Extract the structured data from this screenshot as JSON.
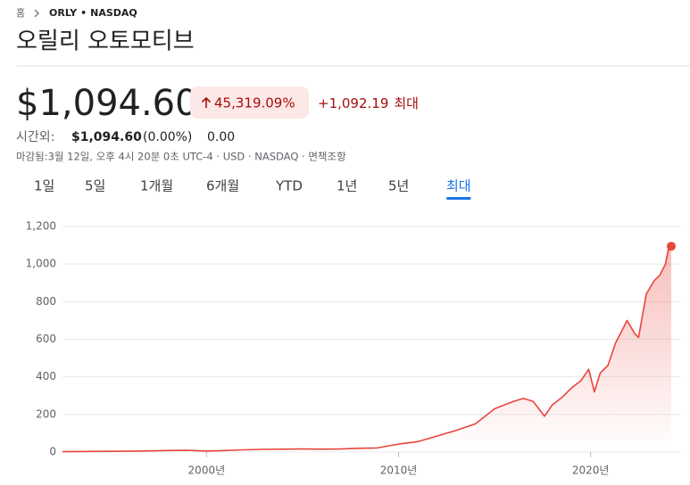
{
  "breadcrumb": {
    "home": "홈",
    "ticker": "ORLY",
    "separator": "•",
    "exchange": "NASDAQ"
  },
  "title": "오릴리 오토모티브",
  "price": "$1,094.60",
  "change": {
    "percent": "45,319.09%",
    "amount": "+1,092.19",
    "period": "최대"
  },
  "after_hours": {
    "label": "시간외:",
    "price": "$1,094.60",
    "percent": "(0.00%)",
    "amount": "0.00"
  },
  "info": "마감됨:3월 12일, 오후 4시 20분 0초 UTC-4 · USD · NASDAQ · 면책조항",
  "tabs": [
    "1일",
    "5일",
    "1개월",
    "6개월",
    "YTD",
    "1년",
    "5년",
    "최대"
  ],
  "selected_tab": 7,
  "chart_data": {
    "type": "line",
    "x": [
      1992.5,
      1993.5,
      1995,
      1996.5,
      1998,
      1999,
      2000,
      2001,
      2002,
      2003,
      2004,
      2005,
      2006,
      2007,
      2008,
      2008.9,
      2010,
      2011,
      2012,
      2012.5,
      2013,
      2014,
      2015,
      2015.5,
      2016,
      2016.5,
      2017,
      2017.3,
      2017.6,
      2018,
      2018.5,
      2019,
      2019.5,
      2019.9,
      2020.2,
      2020.5,
      2020.9,
      2021.3,
      2021.6,
      2021.9,
      2022.3,
      2022.5,
      2022.9,
      2023.3,
      2023.6,
      2023.9,
      2024.05,
      2024.2
    ],
    "series": [
      {
        "color": "#e8453c",
        "values": [
          2,
          3,
          4,
          5,
          8,
          9,
          5,
          8,
          12,
          14,
          15,
          16,
          15,
          16,
          20,
          22,
          42,
          55,
          85,
          100,
          115,
          150,
          230,
          250,
          270,
          285,
          270,
          230,
          190,
          250,
          290,
          340,
          380,
          440,
          320,
          420,
          460,
          580,
          640,
          700,
          630,
          610,
          840,
          910,
          940,
          1000,
          1080,
          1094.6
        ]
      }
    ],
    "xlim": [
      1992.5,
      2024.2
    ],
    "ylim": [
      0,
      1200
    ],
    "xticks": [
      {
        "value": 2000,
        "label": "2000년"
      },
      {
        "value": 2010,
        "label": "2010년"
      },
      {
        "value": 2020,
        "label": "2020년"
      }
    ],
    "yticks": [
      0,
      200,
      400,
      600,
      800,
      {
        "value": 1000,
        "label": "1,000"
      },
      {
        "value": 1200,
        "label": "1,200"
      }
    ],
    "grid": true
  }
}
